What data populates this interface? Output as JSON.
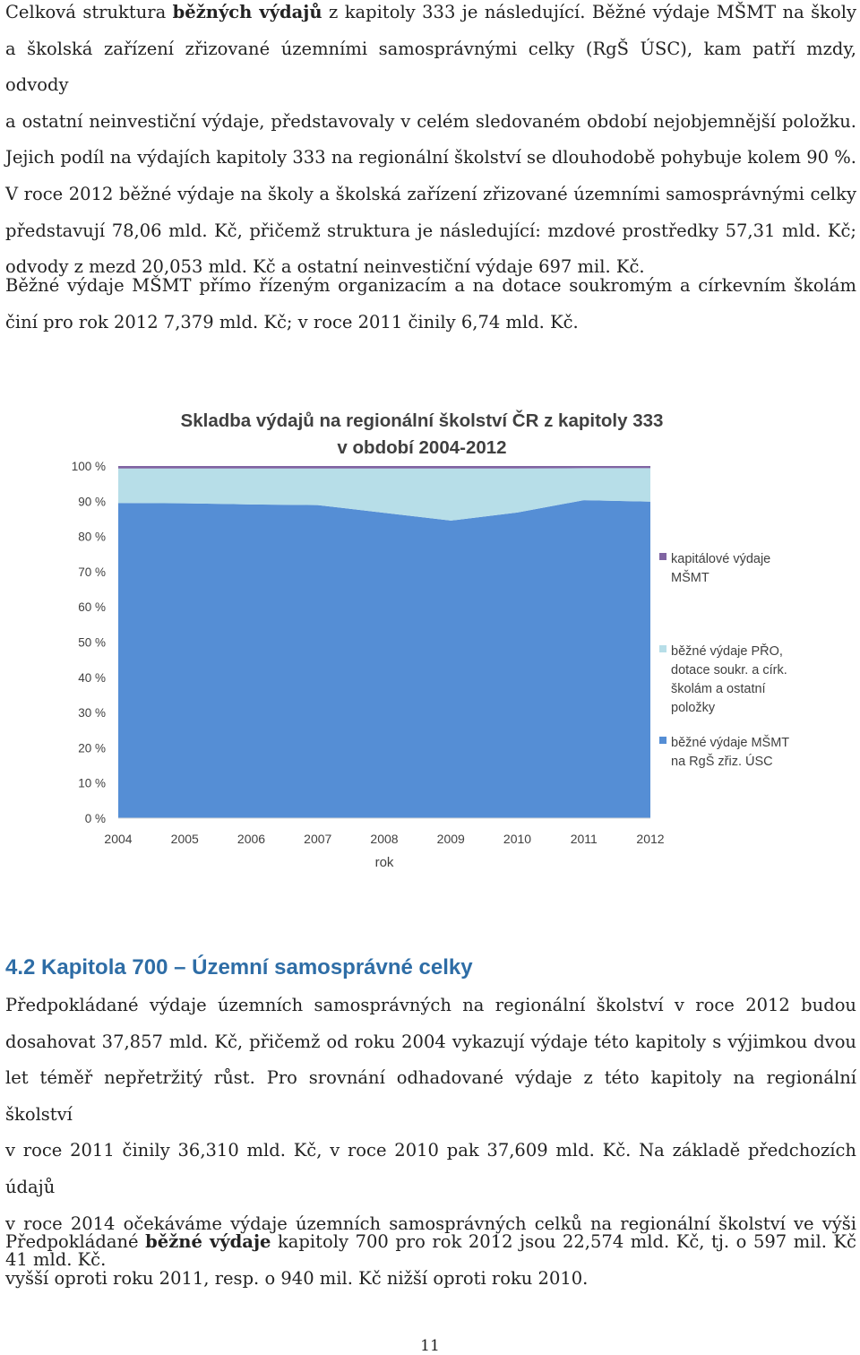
{
  "intro": {
    "lines": [
      [
        "Celková struktura ",
        "běžných výdajů",
        " z kapitoly 333 je následující. Běžné výdaje MŠMT na školy"
      ],
      "a školská zařízení zřizované územními samosprávnými celky (RgŠ ÚSC), kam patří mzdy, odvody",
      "a ostatní neinvestiční výdaje, představovaly v celém sledovaném období nejobjemnější položku.",
      "Jejich podíl na výdajích kapitoly 333 na regionální školství se dlouhodobě pohybuje kolem 90 %.",
      "V roce 2012 běžné výdaje na školy a školská zařízení zřizované územními samosprávnými celky",
      "představují 78,06 mld. Kč, přičemž struktura je následující: mzdové prostředky 57,31 mld. Kč;",
      "odvody z mezd 20,053 mld. Kč a ostatní neinvestiční výdaje 697 mil. Kč."
    ]
  },
  "para2": {
    "lines": [
      "Běžné výdaje MŠMT přímo řízeným organizacím a na dotace soukromým a církevním školám",
      "činí pro rok 2012 7,379 mld. Kč; v roce 2011 činily 6,74 mld. Kč."
    ]
  },
  "chart_data": {
    "type": "area",
    "stacked_percent": true,
    "title_lines": [
      "Skladba výdajů na regionální školství ČR z kapitoly 333",
      "v období 2004-2012"
    ],
    "xlabel": "rok",
    "x": [
      "2004",
      "2005",
      "2006",
      "2007",
      "2008",
      "2009",
      "2010",
      "2011",
      "2012"
    ],
    "y_ticks": [
      "0 %",
      "10 %",
      "20 %",
      "30 %",
      "40 %",
      "50 %",
      "60 %",
      "70 %",
      "80 %",
      "90 %",
      "100 %"
    ],
    "ylim": [
      0,
      100
    ],
    "grid": false,
    "legend_position": "right",
    "series": [
      {
        "name": "běžné výdaje MŠMT na RgŠ zřiz. ÚSC",
        "legend_lines": [
          "běžné výdaje MŠMT",
          "na RgŠ zřiz. ÚSC"
        ],
        "color": "#558ed5",
        "values": [
          89.5,
          89.4,
          89.1,
          88.9,
          86.7,
          84.5,
          86.8,
          90.3,
          89.9
        ]
      },
      {
        "name": "běžné výdaje PŘO, dotace soukr. a círk. školám a ostatní položky",
        "legend_lines": [
          "běžné výdaje PŘO,",
          "dotace soukr. a círk.",
          "školám a ostatní",
          "položky"
        ],
        "color": "#b7dee8",
        "values": [
          9.8,
          9.9,
          10.2,
          10.4,
          12.6,
          14.8,
          12.5,
          9.1,
          9.5
        ]
      },
      {
        "name": "kapitálové výdaje MŠMT",
        "legend_lines": [
          "kapitálové výdaje",
          "MŠMT"
        ],
        "color": "#8064a2",
        "values": [
          0.7,
          0.7,
          0.7,
          0.7,
          0.7,
          0.7,
          0.7,
          0.6,
          0.6
        ]
      }
    ]
  },
  "section": {
    "number": "4.2",
    "title": "Kapitola 700 – Územní samosprávné celky"
  },
  "para3": {
    "lines": [
      "Předpokládané výdaje územních samosprávných na regionální školství v roce 2012 budou",
      "dosahovat 37,857 mld. Kč, přičemž od roku 2004 vykazují výdaje této kapitoly s výjimkou dvou",
      "let téměř nepřetržitý růst. Pro srovnání odhadované výdaje z této kapitoly na regionální školství",
      "v roce 2011 činily 36,310 mld. Kč, v roce 2010 pak 37,609 mld. Kč. Na základě předchozích údajů",
      "v roce 2014 očekáváme výdaje územních samosprávných celků na regionální školství ve výši",
      "41 mld. Kč."
    ]
  },
  "para4": {
    "lines": [
      [
        "Předpokládané ",
        "běžné výdaje",
        " kapitoly 700 pro rok 2012 jsou 22,574 mld. Kč, tj. o 597 mil. Kč"
      ],
      "vyšší oproti roku 2011, resp. o 940 mil. Kč nižší oproti roku 2010."
    ]
  },
  "page_number": "11"
}
